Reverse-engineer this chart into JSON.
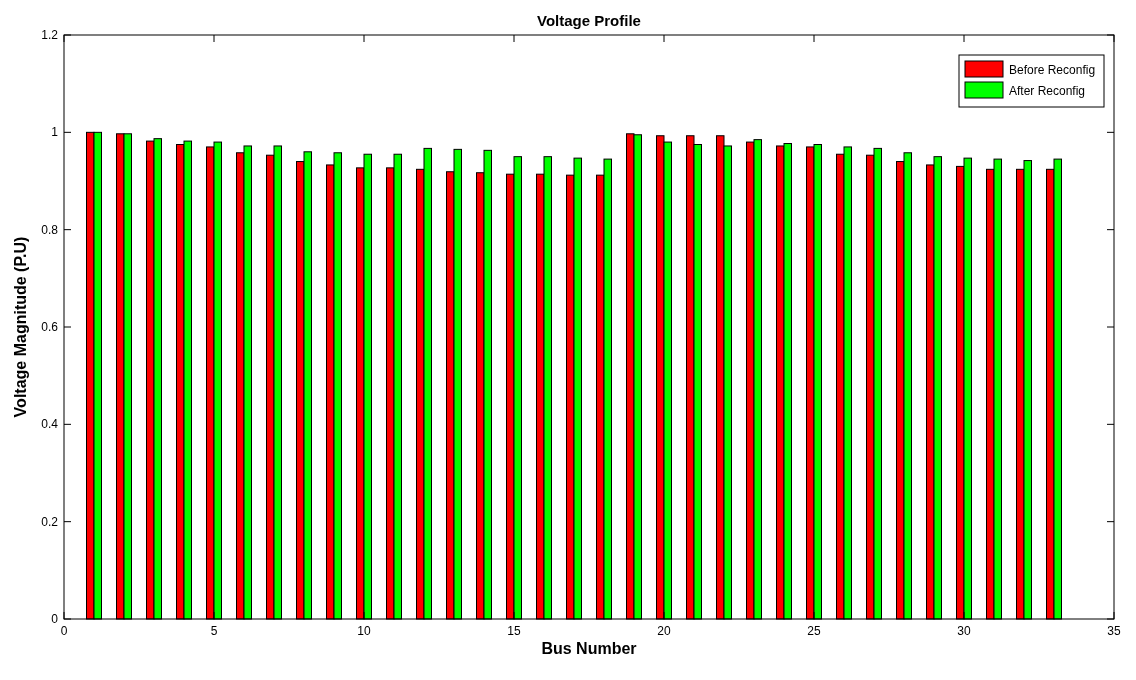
{
  "chart_data": {
    "type": "bar",
    "title": "Voltage Profile",
    "xlabel": "Bus Number",
    "ylabel": "Voltage Magnitude (P.U)",
    "x": [
      1,
      2,
      3,
      4,
      5,
      6,
      7,
      8,
      9,
      10,
      11,
      12,
      13,
      14,
      15,
      16,
      17,
      18,
      19,
      20,
      21,
      22,
      23,
      24,
      25,
      26,
      27,
      28,
      29,
      30,
      31,
      32,
      33
    ],
    "series": [
      {
        "name": "Before Reconfig",
        "color": "#ff0000",
        "values": [
          1.0,
          0.997,
          0.982,
          0.975,
          0.97,
          0.958,
          0.953,
          0.94,
          0.933,
          0.927,
          0.927,
          0.924,
          0.919,
          0.917,
          0.914,
          0.914,
          0.912,
          0.912,
          0.997,
          0.993,
          0.993,
          0.993,
          0.98,
          0.972,
          0.97,
          0.955,
          0.953,
          0.94,
          0.933,
          0.93,
          0.924,
          0.924,
          0.924
        ]
      },
      {
        "name": "After Reconfig",
        "color": "#00ff00",
        "values": [
          1.0,
          0.997,
          0.987,
          0.982,
          0.98,
          0.972,
          0.972,
          0.96,
          0.958,
          0.955,
          0.955,
          0.967,
          0.965,
          0.963,
          0.95,
          0.95,
          0.947,
          0.945,
          0.995,
          0.98,
          0.975,
          0.972,
          0.985,
          0.977,
          0.975,
          0.97,
          0.967,
          0.958,
          0.95,
          0.947,
          0.945,
          0.942,
          0.945
        ]
      }
    ],
    "xlim": [
      0,
      35
    ],
    "xticks": [
      0,
      5,
      10,
      15,
      20,
      25,
      30,
      35
    ],
    "ylim": [
      0,
      1.2
    ],
    "yticks": [
      0,
      0.2,
      0.4,
      0.6,
      0.8,
      1,
      1.2
    ],
    "grid": false,
    "legend": "top right"
  }
}
